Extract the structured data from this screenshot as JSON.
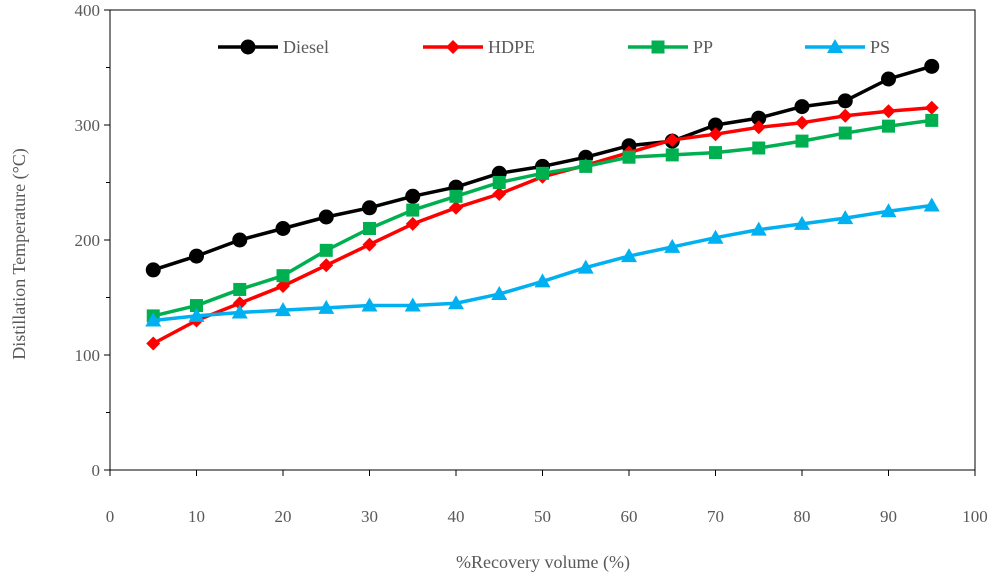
{
  "chart_data": {
    "type": "line",
    "xlabel": "%Recovery volume (%)",
    "ylabel": "Distillation Temperature (°C)",
    "xlim": [
      0,
      100
    ],
    "ylim": [
      0,
      400
    ],
    "x_ticks": [
      0,
      10,
      20,
      30,
      40,
      50,
      60,
      70,
      80,
      90,
      100
    ],
    "y_ticks": [
      0,
      100,
      200,
      300,
      400
    ],
    "grid": false,
    "legend_position": "top",
    "x": [
      5,
      10,
      15,
      20,
      25,
      30,
      35,
      40,
      45,
      50,
      55,
      60,
      65,
      70,
      75,
      80,
      85,
      90,
      95
    ],
    "series": [
      {
        "name": "Diesel",
        "color": "#000000",
        "marker": "circle",
        "values": [
          174,
          186,
          200,
          210,
          220,
          228,
          238,
          246,
          258,
          264,
          272,
          282,
          286,
          300,
          306,
          316,
          321,
          340,
          351
        ]
      },
      {
        "name": "HDPE",
        "color": "#ff0000",
        "marker": "diamond",
        "values": [
          110,
          130,
          145,
          160,
          178,
          196,
          214,
          228,
          240,
          255,
          265,
          276,
          287,
          292,
          298,
          302,
          308,
          312,
          315
        ]
      },
      {
        "name": "PP",
        "color": "#00b050",
        "marker": "square",
        "values": [
          134,
          143,
          157,
          169,
          191,
          210,
          226,
          238,
          250,
          258,
          264,
          272,
          274,
          276,
          280,
          286,
          293,
          299,
          304
        ]
      },
      {
        "name": "PS",
        "color": "#00b0f0",
        "marker": "triangle",
        "values": [
          130,
          134,
          137,
          139,
          141,
          143,
          143,
          145,
          153,
          164,
          176,
          186,
          194,
          202,
          209,
          214,
          219,
          225,
          230
        ]
      }
    ]
  }
}
